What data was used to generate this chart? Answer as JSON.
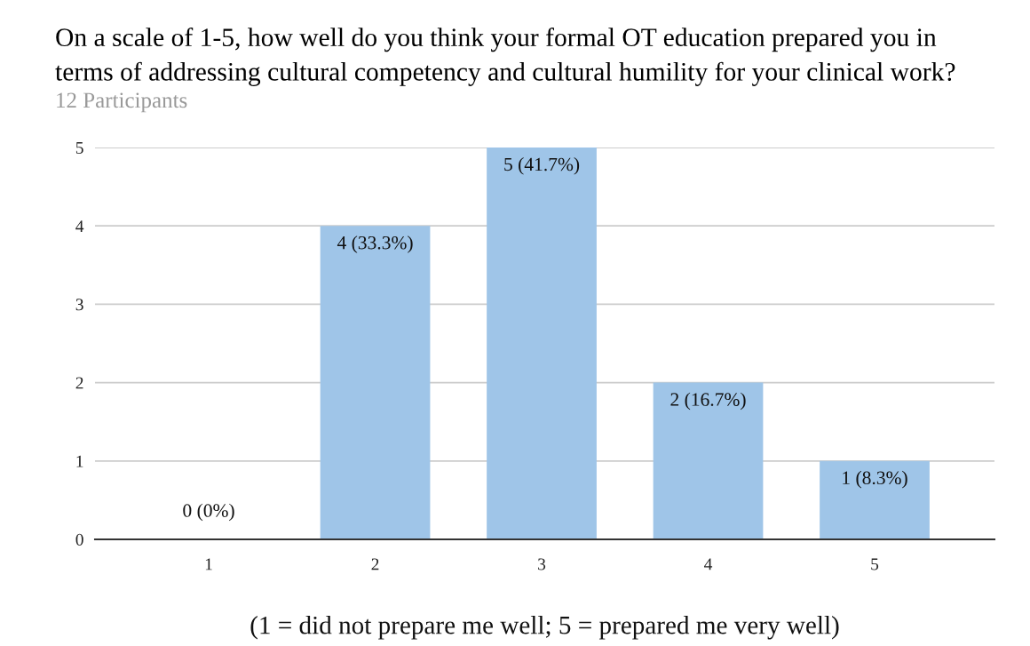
{
  "chart_data": {
    "type": "bar",
    "title": "On a scale of 1-5, how well do you think your formal OT education prepared you in\nterms of addressing cultural competency and cultural humility for your clinical work?",
    "subtitle": "12 Participants",
    "xlabel": "(1 = did not prepare me well; 5 = prepared me very well)",
    "categories": [
      "1",
      "2",
      "3",
      "4",
      "5"
    ],
    "values": [
      0,
      4,
      5,
      2,
      1
    ],
    "value_labels": [
      "0 (0%)",
      "4 (33.3%)",
      "5 (41.7%)",
      "2 (16.7%)",
      "1 (8.3%)"
    ],
    "color": "#9fc5e8",
    "ylim": [
      0,
      5
    ],
    "yticks": [
      0,
      1,
      2,
      3,
      4,
      5
    ],
    "grid": "y"
  }
}
